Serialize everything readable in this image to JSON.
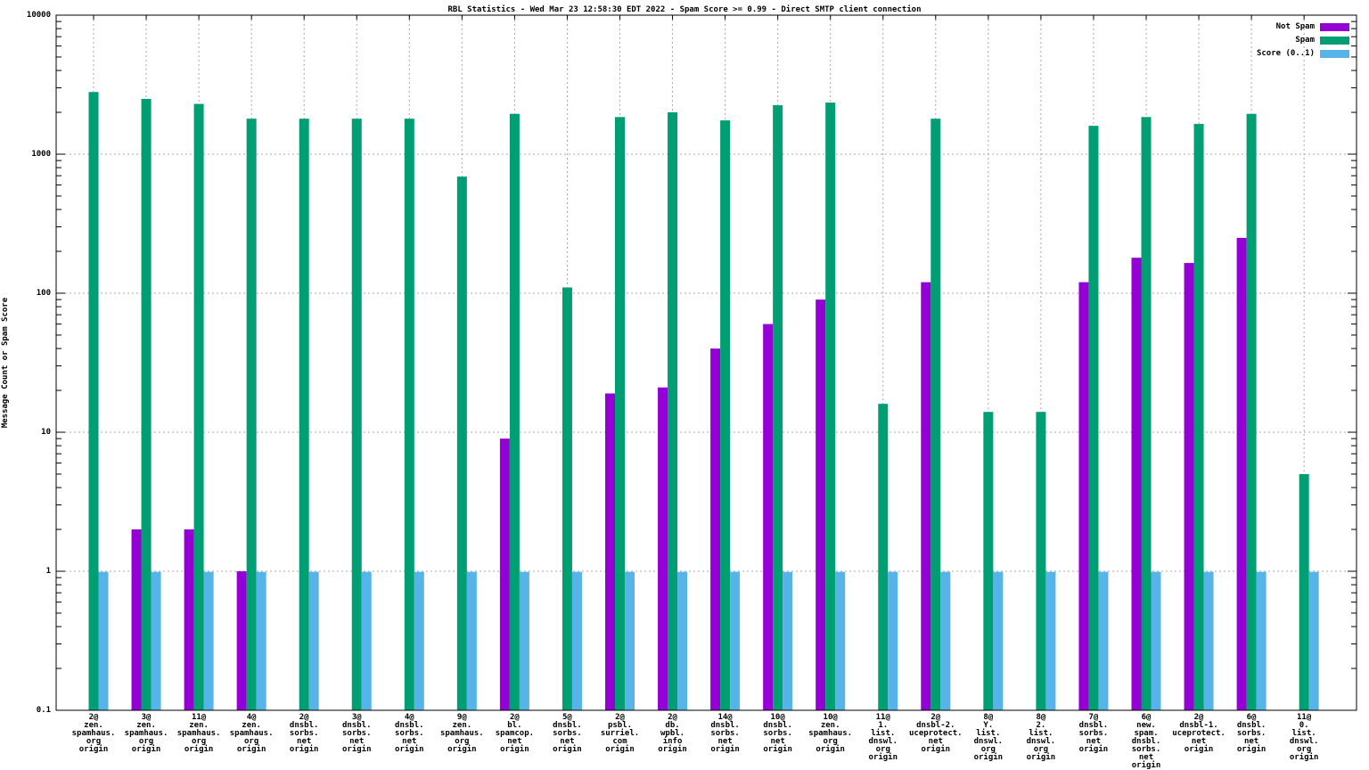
{
  "window": {
    "background": "#ffffff"
  },
  "chart_data": {
    "type": "bar",
    "title": "RBL Statistics - Wed Mar 23 12:58:30 EDT 2022 - Spam Score >= 0.99 - Direct SMTP client connection",
    "xlabel": "",
    "ylabel": "Message Count or Spam Score",
    "y_scale": "log",
    "ylim": [
      0.1,
      10000
    ],
    "y_ticks": [
      10000,
      1000,
      100,
      10,
      1,
      0.1
    ],
    "y_tick_labels": [
      "10000",
      "1000",
      "100",
      "10",
      "1",
      "0.1"
    ],
    "grid": true,
    "legend_position": "top-right",
    "colors": {
      "not_spam": "#9400D3",
      "spam": "#009E73",
      "score": "#56B4E9",
      "grid": "#a8a8a8",
      "frame": "#000000"
    },
    "categories": [
      [
        "2@",
        "zen.",
        "spamhaus.",
        "org",
        "origin"
      ],
      [
        "3@",
        "zen.",
        "spamhaus.",
        "org",
        "origin"
      ],
      [
        "11@",
        "zen.",
        "spamhaus.",
        "org",
        "origin"
      ],
      [
        "4@",
        "zen.",
        "spamhaus.",
        "org",
        "origin"
      ],
      [
        "2@",
        "dnsbl.",
        "sorbs.",
        "net",
        "origin"
      ],
      [
        "3@",
        "dnsbl.",
        "sorbs.",
        "net",
        "origin"
      ],
      [
        "4@",
        "dnsbl.",
        "sorbs.",
        "net",
        "origin"
      ],
      [
        "9@",
        "zen.",
        "spamhaus.",
        "org",
        "origin"
      ],
      [
        "2@",
        "bl.",
        "spamcop.",
        "net",
        "origin"
      ],
      [
        "5@",
        "dnsbl.",
        "sorbs.",
        "net",
        "origin"
      ],
      [
        "2@",
        "psbl.",
        "surriel.",
        "com",
        "origin"
      ],
      [
        "2@",
        "db.",
        "wpbl.",
        "info",
        "origin"
      ],
      [
        "14@",
        "dnsbl.",
        "sorbs.",
        "net",
        "origin"
      ],
      [
        "10@",
        "dnsbl.",
        "sorbs.",
        "net",
        "origin"
      ],
      [
        "10@",
        "zen.",
        "spamhaus.",
        "org",
        "origin"
      ],
      [
        "11@",
        "1.",
        "list.",
        "dnswl.",
        "org",
        "origin"
      ],
      [
        "2@",
        "dnsbl-2.",
        "uceprotect.",
        "net",
        "origin"
      ],
      [
        "8@",
        "Y.",
        "list.",
        "dnswl.",
        "org",
        "origin"
      ],
      [
        "8@",
        "2.",
        "list.",
        "dnswl.",
        "org",
        "origin"
      ],
      [
        "7@",
        "dnsbl.",
        "sorbs.",
        "net",
        "origin"
      ],
      [
        "6@",
        "new.",
        "spam.",
        "dnsbl.",
        "sorbs.",
        "net",
        "origin"
      ],
      [
        "2@",
        "dnsbl-1.",
        "uceprotect.",
        "net",
        "origin"
      ],
      [
        "6@",
        "dnsbl.",
        "sorbs.",
        "net",
        "origin"
      ],
      [
        "11@",
        "0.",
        "list.",
        "dnswl.",
        "org",
        "origin"
      ]
    ],
    "series": [
      {
        "name": "Not Spam",
        "color": "#9400D3",
        "values": [
          null,
          2,
          2,
          1,
          null,
          null,
          null,
          null,
          9,
          null,
          19,
          21,
          40,
          60,
          90,
          null,
          120,
          null,
          null,
          120,
          180,
          165,
          250,
          null
        ]
      },
      {
        "name": "Spam",
        "color": "#009E73",
        "values": [
          2800,
          2500,
          2300,
          1800,
          1800,
          1800,
          1800,
          690,
          1950,
          110,
          1850,
          2000,
          1750,
          2250,
          2350,
          16,
          1800,
          14,
          14,
          1600,
          1850,
          1650,
          1950,
          5
        ]
      },
      {
        "name": "Score (0..1)",
        "color": "#56B4E9",
        "values": [
          0.99,
          0.99,
          0.99,
          0.99,
          0.99,
          0.99,
          0.99,
          0.99,
          0.99,
          0.99,
          0.99,
          0.99,
          0.99,
          0.99,
          0.99,
          0.99,
          0.99,
          0.99,
          0.99,
          0.99,
          0.99,
          0.99,
          0.99,
          0.99
        ]
      }
    ]
  }
}
